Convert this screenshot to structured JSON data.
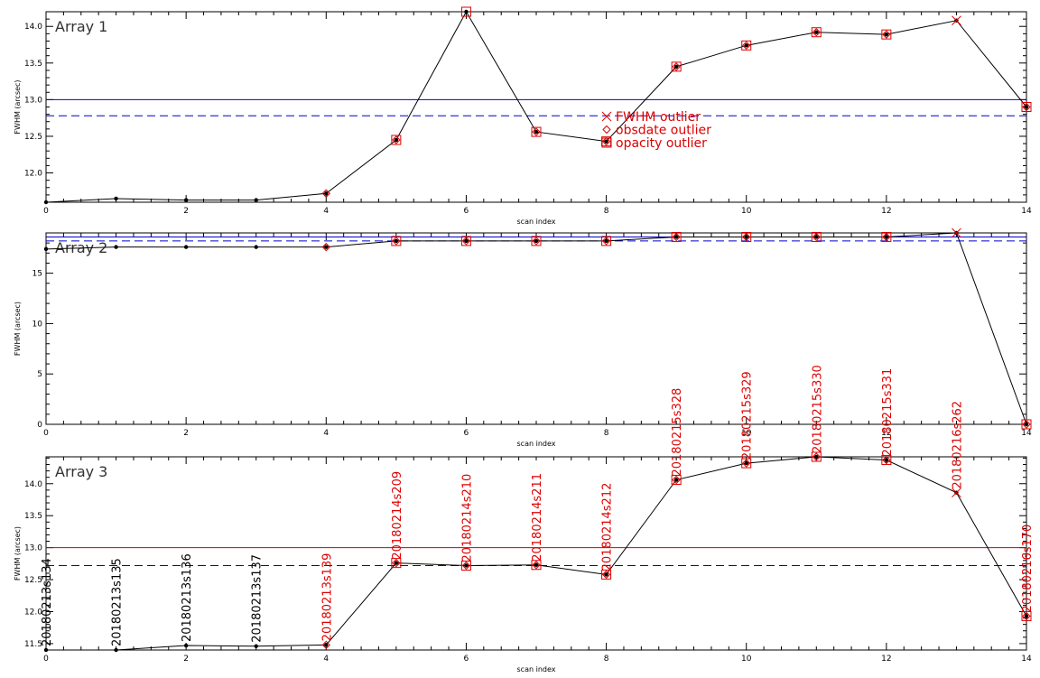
{
  "chart_data": [
    {
      "type": "line",
      "title": "Array 1",
      "xlabel": "scan index",
      "ylabel": "FWHM (arcsec)",
      "xlim": [
        0,
        14
      ],
      "ylim": [
        11.6,
        14.2
      ],
      "xticks": [
        0,
        2,
        4,
        6,
        8,
        10,
        12,
        14
      ],
      "yticks": [
        12.0,
        12.5,
        13.0,
        13.5,
        14.0
      ],
      "xtick_labels": [
        "0",
        "2",
        "4",
        "6",
        "8",
        "10",
        "12",
        "14"
      ],
      "ytick_labels": [
        "12.0",
        "12.5",
        "13.0",
        "13.5",
        "14.0"
      ],
      "x": [
        0,
        1,
        2,
        3,
        4,
        5,
        6,
        7,
        8,
        9,
        10,
        11,
        12,
        13,
        14
      ],
      "y": [
        11.6,
        11.65,
        11.63,
        11.63,
        11.72,
        12.45,
        14.2,
        12.56,
        12.43,
        13.45,
        13.74,
        13.92,
        13.89,
        14.08,
        12.9
      ],
      "outlier_fwhm": [
        13
      ],
      "outlier_obsdate": [
        4,
        5,
        7,
        8,
        9,
        10,
        11,
        12,
        14
      ],
      "outlier_opacity": [
        5,
        6,
        7,
        8,
        9,
        10,
        11,
        12,
        14
      ],
      "hline_solid": 13.0,
      "hline_dashed": 12.78,
      "legend": [
        {
          "marker": "cross",
          "label": "FWHM outlier"
        },
        {
          "marker": "diamond",
          "label": "obsdate outlier"
        },
        {
          "marker": "square",
          "label": "opacity outlier"
        }
      ],
      "point_labels": []
    },
    {
      "type": "line",
      "title": "Array 2",
      "xlabel": "scan index",
      "ylabel": "FWHM (arcsec)",
      "xlim": [
        0,
        14
      ],
      "ylim": [
        0,
        19
      ],
      "xticks": [
        0,
        2,
        4,
        6,
        8,
        10,
        12,
        14
      ],
      "yticks": [
        0,
        5,
        10,
        15
      ],
      "xtick_labels": [
        "0",
        "2",
        "4",
        "6",
        "8",
        "10",
        "12",
        "14"
      ],
      "ytick_labels": [
        "0",
        "5",
        "10",
        "15"
      ],
      "x": [
        0,
        1,
        2,
        3,
        4,
        5,
        6,
        7,
        8,
        9,
        10,
        11,
        12,
        13,
        14
      ],
      "y": [
        17.4,
        17.6,
        17.6,
        17.6,
        17.6,
        18.2,
        18.2,
        18.2,
        18.2,
        18.6,
        18.6,
        18.6,
        18.6,
        19.0,
        0.0
      ],
      "outlier_fwhm": [
        13
      ],
      "outlier_obsdate": [
        4,
        5,
        6,
        7,
        8,
        9,
        10,
        11,
        12,
        14
      ],
      "outlier_opacity": [
        5,
        6,
        7,
        8,
        9,
        10,
        11,
        12,
        14
      ],
      "hline_solid": 18.6,
      "hline_dashed": 18.2,
      "legend": [],
      "point_labels": []
    },
    {
      "type": "line",
      "title": "Array 3",
      "xlabel": "scan index",
      "ylabel": "FWHM (arcsec)",
      "xlim": [
        0,
        14
      ],
      "ylim": [
        11.4,
        14.42
      ],
      "xticks": [
        0,
        2,
        4,
        6,
        8,
        10,
        12,
        14
      ],
      "yticks": [
        11.5,
        12.0,
        12.5,
        13.0,
        13.5,
        14.0
      ],
      "xtick_labels": [
        "0",
        "2",
        "4",
        "6",
        "8",
        "10",
        "12",
        "14"
      ],
      "ytick_labels": [
        "11.5",
        "12.0",
        "12.5",
        "13.0",
        "13.5",
        "14.0"
      ],
      "x": [
        0,
        1,
        2,
        3,
        4,
        5,
        6,
        7,
        8,
        9,
        10,
        11,
        12,
        13,
        14
      ],
      "y": [
        11.4,
        11.4,
        11.47,
        11.46,
        11.48,
        12.76,
        12.72,
        12.73,
        12.58,
        14.06,
        14.32,
        14.42,
        14.37,
        13.86,
        11.93
      ],
      "outlier_fwhm": [
        13
      ],
      "outlier_obsdate": [
        4,
        5,
        6,
        7,
        8,
        9,
        10,
        11,
        12,
        14
      ],
      "outlier_opacity": [
        5,
        6,
        7,
        8,
        9,
        10,
        11,
        12,
        14
      ],
      "hline_solid": 13.0,
      "hline_dashed": 12.72,
      "legend": [],
      "point_labels": [
        {
          "x": 0,
          "text": "20180213s134",
          "color": "#000000"
        },
        {
          "x": 1,
          "text": "20180213s135",
          "color": "#000000"
        },
        {
          "x": 2,
          "text": "20180213s136",
          "color": "#000000"
        },
        {
          "x": 3,
          "text": "20180213s137",
          "color": "#000000"
        },
        {
          "x": 4,
          "text": "20180213s139",
          "color": "#dd0000"
        },
        {
          "x": 5,
          "text": "20180214s209",
          "color": "#dd0000"
        },
        {
          "x": 6,
          "text": "20180214s210",
          "color": "#dd0000"
        },
        {
          "x": 7,
          "text": "20180214s211",
          "color": "#dd0000"
        },
        {
          "x": 8,
          "text": "20180214s212",
          "color": "#dd0000"
        },
        {
          "x": 9,
          "text": "20180215s328",
          "color": "#dd0000"
        },
        {
          "x": 10,
          "text": "20180215s329",
          "color": "#dd0000"
        },
        {
          "x": 11,
          "text": "20180215s330",
          "color": "#dd0000"
        },
        {
          "x": 12,
          "text": "20180215s331",
          "color": "#dd0000"
        },
        {
          "x": 13,
          "text": "20180216s262",
          "color": "#dd0000"
        },
        {
          "x": 14,
          "text": "20180216s170",
          "color": "#dd0000"
        }
      ]
    }
  ],
  "colors": {
    "axes": "#000000",
    "data_line": "#000000",
    "reference_line": "#0000cc",
    "outlier": "#dd0000",
    "solid_line_array3": "#cc0000"
  }
}
